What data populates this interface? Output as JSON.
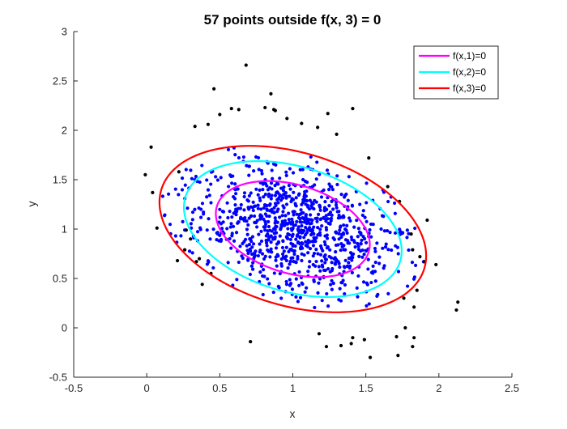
{
  "chart_data": {
    "type": "scatter",
    "title": "57 points outside f(x, 3) = 0",
    "xlabel": "x",
    "ylabel": "y",
    "xlim": [
      -0.5,
      2.5
    ],
    "ylim": [
      -0.5,
      3
    ],
    "xticks": [
      -0.5,
      0,
      0.5,
      1,
      1.5,
      2,
      2.5
    ],
    "xtick_labels": [
      "-0.5",
      "0",
      "0.5",
      "1",
      "1.5",
      "2",
      "2.5"
    ],
    "yticks": [
      -0.5,
      0,
      0.5,
      1,
      1.5,
      2,
      2.5,
      3
    ],
    "ytick_labels": [
      "-0.5",
      "0",
      "0.5",
      "1",
      "1.5",
      "2",
      "2.5",
      "3"
    ],
    "grid": false,
    "legend_position": "top-right",
    "inside_point_color": "#0000ff",
    "outside_point_color": "#000000",
    "series": [
      {
        "name": "f(x,1)=0",
        "color": "#ff00ff",
        "center": [
          1.0,
          1.0
        ],
        "level": 1
      },
      {
        "name": "f(x,2)=0",
        "color": "#00ffff",
        "center": [
          1.0,
          1.0
        ],
        "level": 2
      },
      {
        "name": "f(x,3)=0",
        "color": "#ff0000",
        "center": [
          1.0,
          1.0
        ],
        "level": 3
      }
    ],
    "ellipse_model": {
      "semi_axis_major_per_level": 0.585,
      "semi_axis_minor_per_level": 0.415,
      "rotation_deg": -38
    },
    "outside_points": [
      [
        0.68,
        2.66
      ],
      [
        0.46,
        2.42
      ],
      [
        0.85,
        2.37
      ],
      [
        0.58,
        2.22
      ],
      [
        0.63,
        2.21
      ],
      [
        0.81,
        2.23
      ],
      [
        0.87,
        2.21
      ],
      [
        0.88,
        2.2
      ],
      [
        1.24,
        2.17
      ],
      [
        1.41,
        2.22
      ],
      [
        1.06,
        2.07
      ],
      [
        1.17,
        2.03
      ],
      [
        1.3,
        1.96
      ],
      [
        1.52,
        1.72
      ],
      [
        0.33,
        2.04
      ],
      [
        0.42,
        2.06
      ],
      [
        0.03,
        1.83
      ],
      [
        -0.01,
        1.55
      ],
      [
        0.22,
        1.58
      ],
      [
        0.04,
        1.37
      ],
      [
        0.07,
        1.01
      ],
      [
        0.27,
        0.99
      ],
      [
        0.3,
        0.9
      ],
      [
        0.21,
        0.68
      ],
      [
        0.26,
        0.79
      ],
      [
        0.34,
        0.67
      ],
      [
        0.38,
        0.44
      ],
      [
        0.36,
        0.7
      ],
      [
        0.44,
        0.55
      ],
      [
        1.65,
        1.43
      ],
      [
        1.73,
        1.28
      ],
      [
        1.92,
        1.09
      ],
      [
        1.81,
        0.95
      ],
      [
        1.82,
        0.79
      ],
      [
        1.87,
        0.72
      ],
      [
        1.9,
        0.67
      ],
      [
        1.98,
        0.64
      ],
      [
        1.85,
        0.38
      ],
      [
        1.76,
        0.3
      ],
      [
        1.83,
        0.21
      ],
      [
        2.13,
        0.26
      ],
      [
        2.12,
        0.18
      ],
      [
        1.77,
        0.0
      ],
      [
        1.71,
        -0.09
      ],
      [
        1.83,
        -0.1
      ],
      [
        1.82,
        -0.19
      ],
      [
        1.72,
        -0.28
      ],
      [
        1.49,
        -0.12
      ],
      [
        1.4,
        -0.16
      ],
      [
        1.41,
        -0.1
      ],
      [
        1.53,
        -0.3
      ],
      [
        1.23,
        -0.19
      ],
      [
        1.33,
        -0.18
      ],
      [
        0.71,
        -0.14
      ],
      [
        1.18,
        -0.06
      ],
      [
        0.96,
        2.12
      ],
      [
        0.5,
        2.16
      ]
    ],
    "inside_point_count": 943
  }
}
